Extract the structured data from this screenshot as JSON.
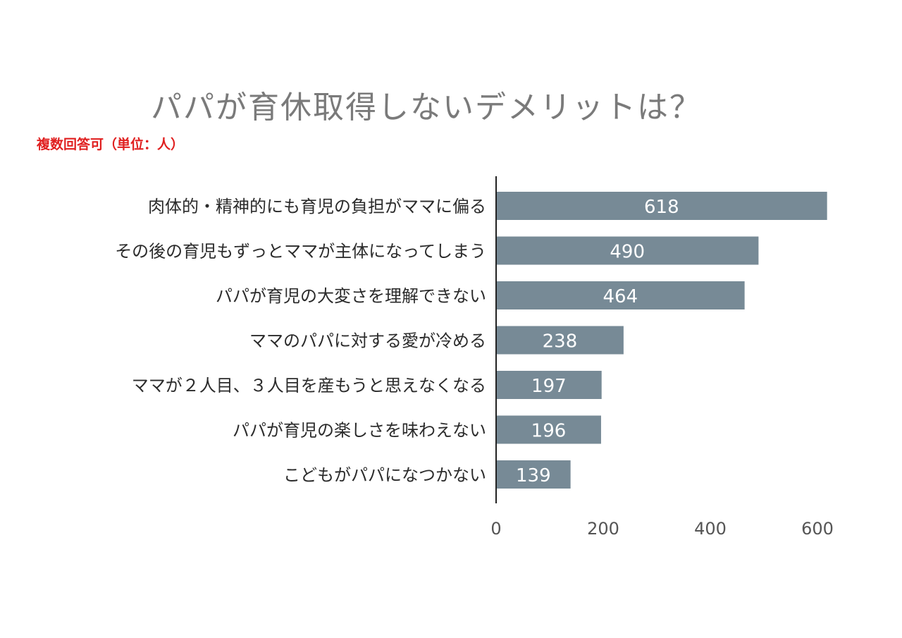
{
  "title": "パパが育休取得しないデメリットは？",
  "subtitle": "複数回答可（単位：人）",
  "colors": {
    "bar": "#778a96",
    "axis": "#222222",
    "title": "#7a7a7a",
    "subtitle": "#e02020"
  },
  "chart_data": {
    "type": "bar",
    "orientation": "horizontal",
    "categories": [
      "肉体的・精神的にも育児の負担がママに偏る",
      "その後の育児もずっとママが主体になってしまう",
      "パパが育児の大変さを理解できない",
      "ママのパパに対する愛が冷める",
      "ママが２人目、３人目を産もうと思えなくなる",
      "パパが育児の楽しさを味わえない",
      "こどもがパパになつかない"
    ],
    "values": [
      618,
      490,
      464,
      238,
      197,
      196,
      139
    ],
    "xlim": [
      0,
      600
    ],
    "xticks": [
      0,
      200,
      400,
      600
    ],
    "grid": false,
    "data_labels": true
  }
}
